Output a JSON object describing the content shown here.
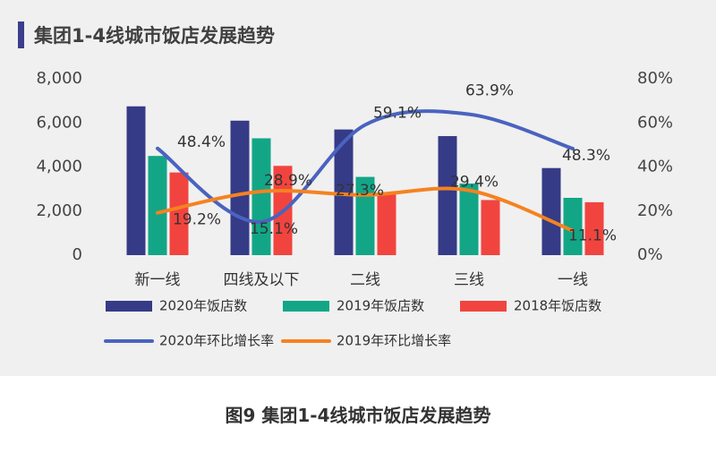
{
  "chart_title": "集团1-4线城市饭店发展趋势",
  "caption": "图9  集团1-4线城市饭店发展趋势",
  "colors": {
    "bar_2020": "#353b86",
    "bar_2019": "#12a687",
    "bar_2018": "#f2443f",
    "line_2020": "#4a63c0",
    "line_2019": "#f58220"
  },
  "chart_data": {
    "type": "bar",
    "title": "集团1-4线城市饭店发展趋势",
    "categories": [
      "新一线",
      "四线及以下",
      "二线",
      "三线",
      "一线"
    ],
    "series": [
      {
        "name": "2020年饭店数",
        "type": "bar",
        "axis": "left",
        "values": [
          6750,
          6100,
          5700,
          5400,
          3950
        ]
      },
      {
        "name": "2019年饭店数",
        "type": "bar",
        "axis": "left",
        "values": [
          4500,
          5300,
          3550,
          3250,
          2600
        ]
      },
      {
        "name": "2018年饭店数",
        "type": "bar",
        "axis": "left",
        "values": [
          3750,
          4050,
          2800,
          2500,
          2400
        ]
      },
      {
        "name": "2020年环比增长率",
        "type": "line",
        "axis": "right",
        "values": [
          48.4,
          15.1,
          59.1,
          63.9,
          48.3
        ],
        "labels": [
          "48.4%",
          "15.1%",
          "59.1%",
          "63.9%",
          "48.3%"
        ]
      },
      {
        "name": "2019年环比增长率",
        "type": "line",
        "axis": "right",
        "values": [
          19.2,
          28.9,
          27.3,
          29.4,
          11.1
        ],
        "labels": [
          "19.2%",
          "28.9%",
          "27.3%",
          "29.4%",
          "11.1%"
        ]
      }
    ],
    "y_left": {
      "range": [
        0,
        8000
      ],
      "ticks": [
        "0",
        "2,000",
        "4,000",
        "6,000",
        "8,000"
      ]
    },
    "y_right": {
      "range": [
        0,
        80
      ],
      "ticks": [
        "0%",
        "20%",
        "40%",
        "60%",
        "80%"
      ]
    },
    "grid": false,
    "legend_position": "bottom"
  }
}
